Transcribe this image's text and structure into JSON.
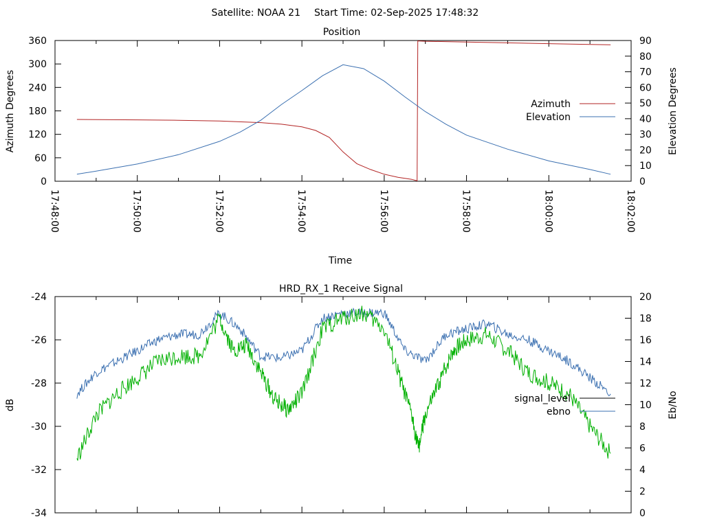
{
  "header": {
    "satellite_text": "Satellite: NOAA 21",
    "start_time_text": "Start Time: 02-Sep-2025 17:48:32"
  },
  "chart_data": [
    {
      "type": "line",
      "title": "Position",
      "xlabel": "Time",
      "ylabel": "Azimuth Degrees",
      "y2label": "Elevation Degrees",
      "xlim": [
        "17:48:00",
        "18:02:00"
      ],
      "ylim": [
        0,
        360
      ],
      "y2lim": [
        0,
        90
      ],
      "x_ticks": [
        "17:48:00",
        "17:50:00",
        "17:52:00",
        "17:54:00",
        "17:56:00",
        "17:58:00",
        "18:00:00",
        "18:02:00"
      ],
      "y_ticks": [
        0,
        60,
        120,
        180,
        240,
        300,
        360
      ],
      "y2_ticks": [
        0,
        10,
        20,
        30,
        40,
        50,
        60,
        70,
        80,
        90
      ],
      "legend_position": "right",
      "series": [
        {
          "name": "Azimuth",
          "axis": "y",
          "color": "#b22222",
          "x": [
            "17:48:32",
            "17:50:00",
            "17:51:00",
            "17:52:00",
            "17:53:00",
            "17:53:30",
            "17:54:00",
            "17:54:20",
            "17:54:40",
            "17:55:00",
            "17:55:20",
            "17:55:40",
            "17:56:00",
            "17:56:20",
            "17:56:40",
            "17:56:48",
            "17:56:49",
            "17:57:00",
            "17:58:00",
            "17:59:00",
            "18:00:00",
            "18:01:00",
            "18:01:30"
          ],
          "values": [
            158,
            157,
            156,
            154,
            150,
            146,
            139,
            130,
            112,
            75,
            45,
            30,
            18,
            10,
            5,
            1,
            359,
            358,
            356,
            354,
            352,
            350,
            349
          ]
        },
        {
          "name": "Elevation",
          "axis": "y2",
          "color": "#3a6fb0",
          "x": [
            "17:48:32",
            "17:49:00",
            "17:50:00",
            "17:51:00",
            "17:52:00",
            "17:52:30",
            "17:53:00",
            "17:53:30",
            "17:54:00",
            "17:54:30",
            "17:55:00",
            "17:55:30",
            "17:56:00",
            "17:56:30",
            "17:57:00",
            "17:57:30",
            "17:58:00",
            "17:59:00",
            "18:00:00",
            "18:01:00",
            "18:01:30"
          ],
          "values": [
            4.5,
            6.5,
            11,
            17,
            25.5,
            31.5,
            39,
            49,
            58,
            67.5,
            74.5,
            72,
            64,
            54,
            44.5,
            36.5,
            29.5,
            20.5,
            13,
            7.5,
            4.5
          ]
        }
      ]
    },
    {
      "type": "line",
      "title": "HRD_RX_1 Receive Signal",
      "xlabel": "",
      "ylabel": "dB",
      "y2label": "Eb/No",
      "xlim": [
        "17:48:00",
        "18:02:00"
      ],
      "ylim": [
        -34,
        -24
      ],
      "y2lim": [
        0,
        20
      ],
      "y_ticks": [
        -34,
        -32,
        -30,
        -28,
        -26,
        -24
      ],
      "y2_ticks": [
        0,
        2,
        4,
        6,
        8,
        10,
        12,
        14,
        16,
        18,
        20
      ],
      "legend_position": "right",
      "series": [
        {
          "name": "signal_level",
          "axis": "y",
          "color": "#000000",
          "x": [],
          "values": []
        },
        {
          "name": "ebno",
          "axis": "y2",
          "color": "#3a6fb0",
          "x": [
            "17:48:32",
            "17:49:00",
            "17:49:30",
            "17:50:00",
            "17:50:30",
            "17:51:00",
            "17:51:30",
            "17:52:00",
            "17:52:30",
            "17:53:00",
            "17:53:30",
            "17:54:00",
            "17:54:30",
            "17:55:00",
            "17:55:30",
            "17:56:00",
            "17:56:30",
            "17:57:00",
            "17:57:30",
            "17:58:00",
            "17:58:30",
            "17:59:00",
            "17:59:30",
            "18:00:00",
            "18:00:30",
            "18:01:00",
            "18:01:30"
          ],
          "values": [
            11,
            13,
            14,
            15,
            16,
            16.5,
            16.5,
            18.5,
            17,
            14.5,
            14.3,
            15,
            18,
            18.5,
            18.5,
            18.5,
            15,
            14,
            16.5,
            17,
            17.5,
            16.5,
            16,
            15,
            14,
            12.5,
            11
          ]
        },
        {
          "name": "",
          "axis": "y2",
          "color": "#00b000",
          "x": [
            "17:48:32",
            "17:49:00",
            "17:49:30",
            "17:50:00",
            "17:50:30",
            "17:51:00",
            "17:51:30",
            "17:52:00",
            "17:52:20",
            "17:52:40",
            "17:53:00",
            "17:53:20",
            "17:53:40",
            "17:54:00",
            "17:54:30",
            "17:55:00",
            "17:55:30",
            "17:56:00",
            "17:56:20",
            "17:56:40",
            "17:56:50",
            "17:57:00",
            "17:57:20",
            "17:57:40",
            "17:58:00",
            "17:58:30",
            "17:59:00",
            "17:59:30",
            "18:00:00",
            "18:00:30",
            "18:01:00",
            "18:01:30"
          ],
          "values": [
            5,
            9,
            11,
            12.5,
            14,
            14.5,
            14.5,
            18,
            15,
            15.5,
            13,
            10.5,
            9.5,
            11,
            17,
            18,
            18.5,
            17,
            13,
            9,
            6,
            9,
            12,
            15,
            16,
            16.5,
            15,
            13,
            12,
            11,
            8,
            5.5
          ]
        }
      ]
    }
  ]
}
